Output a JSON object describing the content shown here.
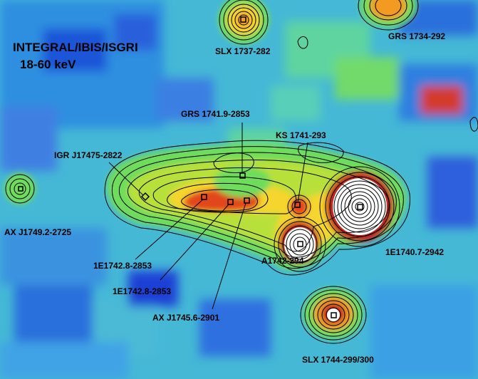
{
  "header": {
    "instrument": "INTEGRAL/IBIS/ISGRI",
    "energy_band": "18-60 keV"
  },
  "sources": [
    {
      "id": "slx-1737-282",
      "label": "SLX 1737-282"
    },
    {
      "id": "grs-1734-292",
      "label": "GRS 1734-292"
    },
    {
      "id": "grs-1741-9-2853",
      "label": "GRS 1741.9-2853"
    },
    {
      "id": "ks-1741-293",
      "label": "KS 1741-293"
    },
    {
      "id": "igr-j17475-2822",
      "label": "IGR J17475-2822"
    },
    {
      "id": "ax-j1749-2-2725",
      "label": "AX J1749.2-2725"
    },
    {
      "id": "1e1742-8-2853-a",
      "label": "1E1742.8-2853"
    },
    {
      "id": "1e1742-8-2853-b",
      "label": "1E1742.8-2853"
    },
    {
      "id": "ax-j1745-6-2901",
      "label": "AX J1745.6-2901"
    },
    {
      "id": "a1742-294",
      "label": "A1742-294"
    },
    {
      "id": "1e1740-7-2942",
      "label": "1E1740.7-2942"
    },
    {
      "id": "slx-1744-299-300",
      "label": "SLX 1744-299/300"
    }
  ],
  "colormap": [
    "#1c3fd6",
    "#2f6fe0",
    "#3fa3e6",
    "#50c8c8",
    "#5fd49a",
    "#6fdc5c",
    "#c8e23a",
    "#f5d52e",
    "#f29a22",
    "#e2471d",
    "#c21f1a",
    "#ffffff"
  ]
}
